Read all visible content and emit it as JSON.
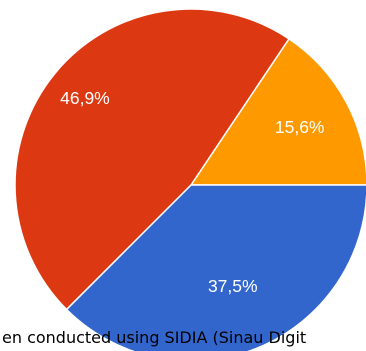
{
  "chart_data": {
    "type": "pie",
    "slices": [
      {
        "label": "15,6%",
        "value": 15.6,
        "color": "#ff9900"
      },
      {
        "label": "37,5%",
        "value": 37.5,
        "color": "#3366cc"
      },
      {
        "label": "46,9%",
        "value": 46.9,
        "color": "#dc3912"
      }
    ],
    "start_angle_deg": 0,
    "direction": "clockwise",
    "slice_border_color": "#ffffff"
  },
  "caption": "en conducted using SIDIA (Sinau Digit"
}
